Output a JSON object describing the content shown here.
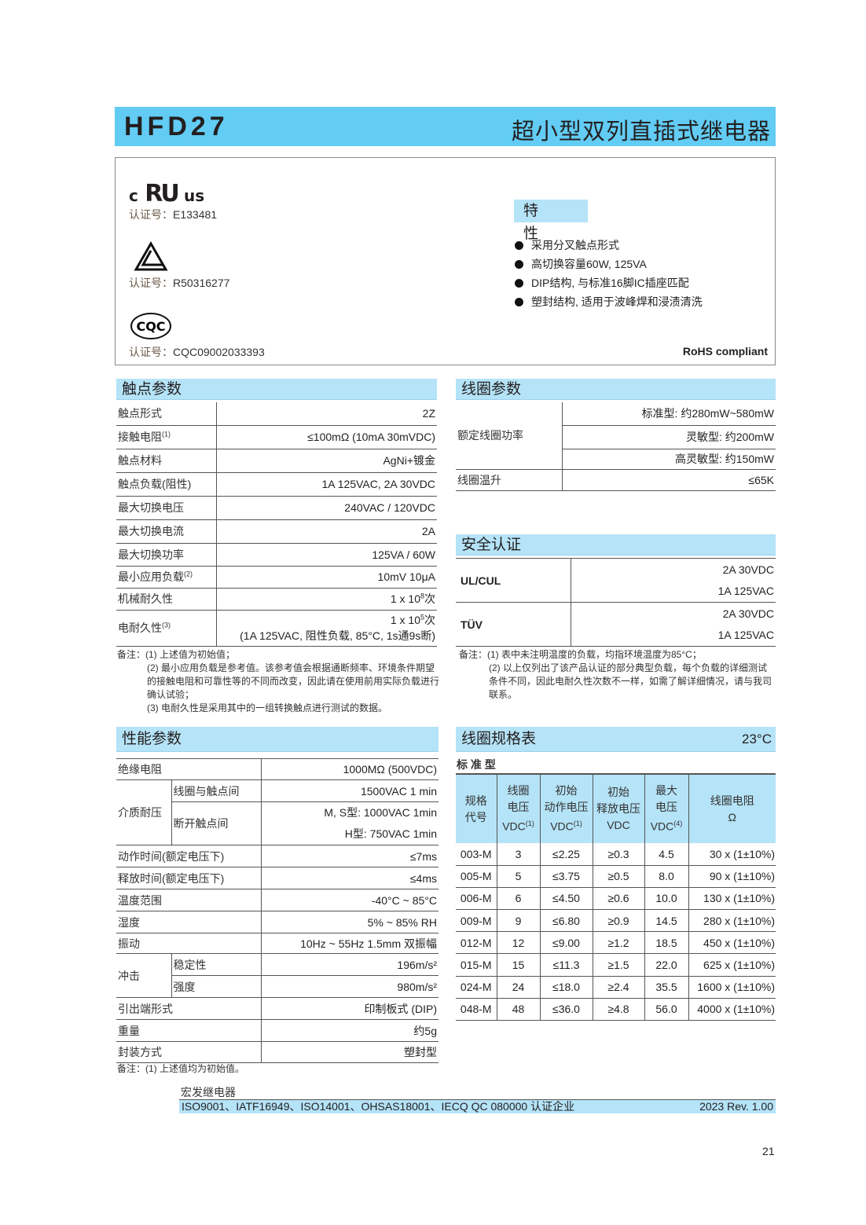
{
  "header": {
    "model": "HFD27",
    "title": "超小型双列直插式继电器",
    "color": "#62ccf4"
  },
  "certs": {
    "label": "认证号：",
    "ul": {
      "logo": "c RU us",
      "number": "E133481"
    },
    "tuv": {
      "logo": "TÜV triangle",
      "number": "R50316277"
    },
    "cqc": {
      "logo": "CQC",
      "number": "CQC09002033393"
    },
    "features_title": "特 性",
    "features": [
      "采用分叉触点形式",
      "高切换容量60W, 125VA",
      "DIP结构, 与标准16脚IC插座匹配",
      "塑封结构, 适用于波峰焊和浸渍清洗"
    ],
    "rohs": "RoHS compliant"
  },
  "contact": {
    "title": "触点参数",
    "rows": [
      {
        "label": "触点形式",
        "value": "2Z"
      },
      {
        "label": "接触电阻",
        "sup": "(1)",
        "value": "≤100mΩ (10mA  30mVDC)"
      },
      {
        "label": "触点材料",
        "value": "AgNi+镀金"
      },
      {
        "label": "触点负载(阻性)",
        "value": "1A 125VAC, 2A  30VDC"
      },
      {
        "label": "最大切换电压",
        "value": "240VAC / 120VDC"
      },
      {
        "label": "最大切换电流",
        "value": "2A"
      },
      {
        "label": "最大切换功率",
        "value": "125VA / 60W"
      },
      {
        "label": "最小应用负载",
        "sup": "(2)",
        "value": "10mV 10μA"
      },
      {
        "label": "机械耐久性",
        "value": "1 x 10",
        "vsup": "8",
        "vsuffix": "次"
      },
      {
        "label": "电耐久性",
        "sup": "(3)",
        "value": "1 x 10",
        "vsup": "5",
        "vsuffix": "次",
        "value2": "(1A 125VAC, 阻性负载, 85°C, 1s通9s断)"
      }
    ],
    "notes": [
      "备注：(1) 上述值为初始值；",
      "(2) 最小应用负载是参考值。该参考值会根据通断频率、环境条件期望的接触电阻和可靠性等的不同而改变，因此请在使用前用实际负载进行确认试验；",
      "(3) 电耐久性是采用其中的一组转换触点进行测试的数据。"
    ]
  },
  "coil": {
    "title": "线圈参数",
    "power_label": "额定线圈功率",
    "power": [
      "标准型: 约280mW~580mW",
      "灵敏型: 约200mW",
      "高灵敏型: 约150mW"
    ],
    "temp_label": "线圈温升",
    "temp": "≤65K"
  },
  "safety": {
    "title": "安全认证",
    "rows": [
      {
        "label": "UL/CUL",
        "values": [
          "2A 30VDC",
          "1A 125VAC"
        ]
      },
      {
        "label": "TÜV",
        "values": [
          "2A 30VDC",
          "1A 125VAC"
        ]
      }
    ],
    "notes": [
      "备注：(1) 表中未注明温度的负载，均指环境温度为85°C；",
      "(2) 以上仅列出了该产品认证的部分典型负载，每个负载的详细测试条件不同，因此电耐久性次数不一样，如需了解详细情况，请与我司联系。"
    ]
  },
  "performance": {
    "title": "性能参数",
    "insulation": {
      "label": "绝缘电阻",
      "value": "1000MΩ (500VDC)"
    },
    "dielectric": {
      "label": "介质耐压",
      "sub1": "线圈与触点间",
      "val1": "1500VAC  1 min",
      "sub2": "断开触点间",
      "val2a": "M, S型: 1000VAC  1min",
      "val2b": "H型: 750VAC 1min"
    },
    "operate": {
      "label": "动作时间(额定电压下)",
      "value": "≤7ms"
    },
    "release": {
      "label": "释放时间(额定电压下)",
      "value": "≤4ms"
    },
    "temp": {
      "label": "温度范围",
      "value": "-40°C ~ 85°C"
    },
    "humidity": {
      "label": "湿度",
      "value": "5% ~ 85% RH"
    },
    "vibration": {
      "label": "振动",
      "value": "10Hz ~ 55Hz  1.5mm 双振幅"
    },
    "shock": {
      "label": "冲击",
      "sub1": "稳定性",
      "val1": "196m/s²",
      "sub2": "强度",
      "val2": "980m/s²"
    },
    "terminal": {
      "label": "引出端形式",
      "value": "印制板式 (DIP)"
    },
    "weight": {
      "label": "重量",
      "value": "约5g"
    },
    "package": {
      "label": "封装方式",
      "value": "塑封型"
    },
    "note": "备注：(1) 上述值均为初始值。"
  },
  "coil_spec": {
    "title": "线圈规格表",
    "temp": "23°C",
    "subtitle": "标 准 型",
    "headers": [
      [
        "规格",
        "代号"
      ],
      [
        "线圈",
        "电压",
        "VDC"
      ],
      [
        "初始",
        "动作电压",
        "VDC"
      ],
      [
        "初始",
        "释放电压",
        "VDC"
      ],
      [
        "最大",
        "电压",
        "VDC"
      ],
      [
        "线圈电阻",
        "Ω"
      ]
    ],
    "header_sups": [
      "",
      "(1)",
      "(1)",
      "",
      "(4)",
      ""
    ],
    "rows": [
      [
        "003-M",
        "3",
        "≤2.25",
        "≥0.3",
        "4.5",
        "30 x (1±10%)"
      ],
      [
        "005-M",
        "5",
        "≤3.75",
        "≥0.5",
        "8.0",
        "90 x (1±10%)"
      ],
      [
        "006-M",
        "6",
        "≤4.50",
        "≥0.6",
        "10.0",
        "130 x (1±10%)"
      ],
      [
        "009-M",
        "9",
        "≤6.80",
        "≥0.9",
        "14.5",
        "280 x (1±10%)"
      ],
      [
        "012-M",
        "12",
        "≤9.00",
        "≥1.2",
        "18.5",
        "450 x (1±10%)"
      ],
      [
        "015-M",
        "15",
        "≤11.3",
        "≥1.5",
        "22.0",
        "625 x (1±10%)"
      ],
      [
        "024-M",
        "24",
        "≤18.0",
        "≥2.4",
        "35.5",
        "1600 x (1±10%)"
      ],
      [
        "048-M",
        "48",
        "≤36.0",
        "≥4.8",
        "56.0",
        "4000 x (1±10%)"
      ]
    ]
  },
  "footer": {
    "company": "宏发继电器",
    "certs": "ISO9001、IATF16949、ISO14001、OHSAS18001、IECQ QC 080000 认证企业",
    "rev": "2023  Rev. 1.00",
    "page": "21",
    "bar_color": "#b5e3f7"
  }
}
